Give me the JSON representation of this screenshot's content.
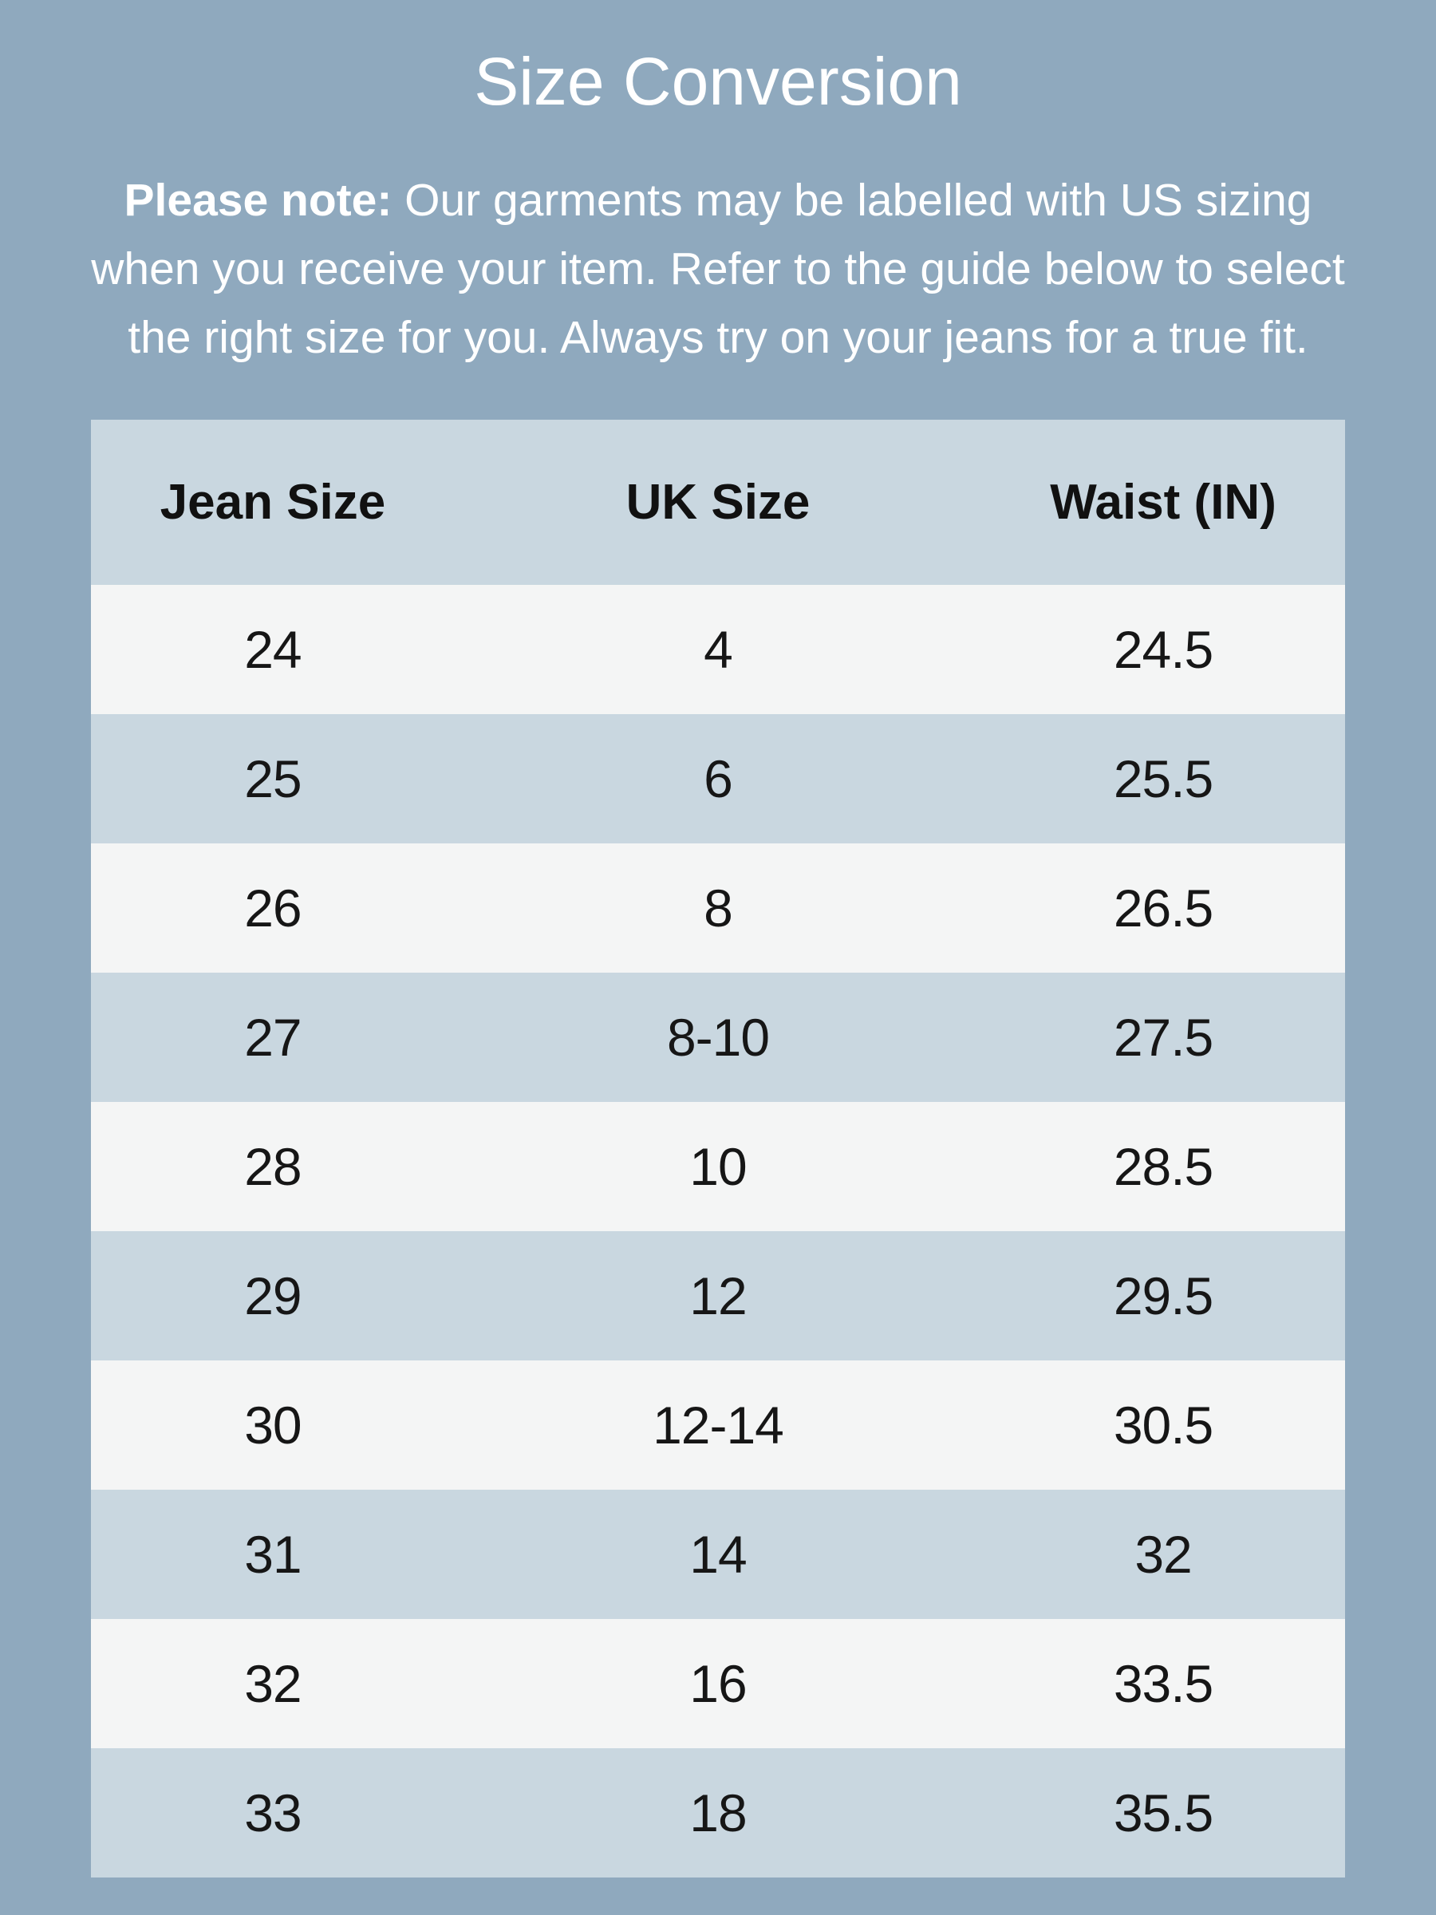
{
  "chart_data": {
    "type": "table",
    "title": "Size Conversion",
    "columns": [
      "Jean Size",
      "UK Size",
      "Waist (IN)"
    ],
    "rows": [
      [
        "24",
        "4",
        "24.5"
      ],
      [
        "25",
        "6",
        "25.5"
      ],
      [
        "26",
        "8",
        "26.5"
      ],
      [
        "27",
        "8-10",
        "27.5"
      ],
      [
        "28",
        "10",
        "28.5"
      ],
      [
        "29",
        "12",
        "29.5"
      ],
      [
        "30",
        "12-14",
        "30.5"
      ],
      [
        "31",
        "14",
        "32"
      ],
      [
        "32",
        "16",
        "33.5"
      ],
      [
        "33",
        "18",
        "35.5"
      ]
    ]
  },
  "note": {
    "bold_label": "Please note:",
    "lines": [
      " Our garments may be labelled with US sizing",
      "when you receive your item. Refer to the guide below to select",
      "the right size for you. Always try on your jeans for a true fit."
    ]
  },
  "colors": {
    "page_background": "#8fa9be",
    "band_row": "#c9d7e0",
    "light_row": "#f4f5f5",
    "heading_text": "#ffffff",
    "cell_text": "#161616"
  }
}
